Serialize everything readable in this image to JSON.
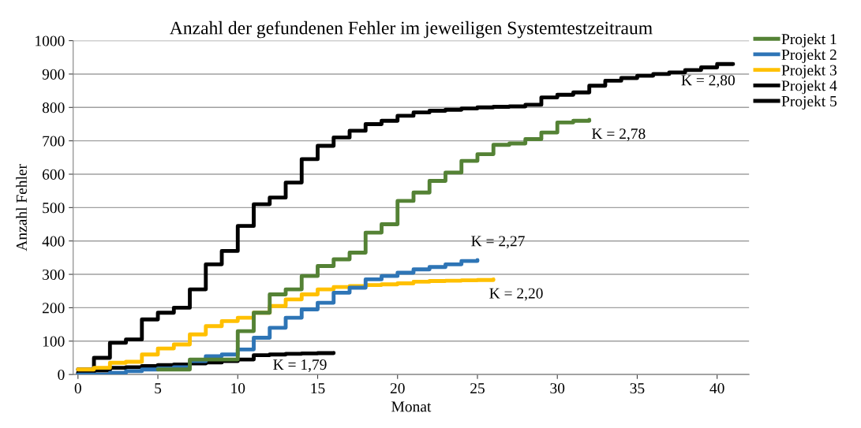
{
  "chart_data": {
    "type": "step",
    "title": "Anzahl der gefundenen Fehler im jeweiligen Systemtestzeitraum",
    "xlabel": "Monat",
    "ylabel": "Anzahl Fehler",
    "x": [
      0,
      1,
      2,
      3,
      4,
      5,
      6,
      7,
      8,
      9,
      10,
      11,
      12,
      13,
      14,
      15,
      16,
      17,
      18,
      19,
      20,
      21,
      22,
      23,
      24,
      25,
      26,
      27,
      28,
      29,
      30,
      31,
      32,
      33,
      34,
      35,
      36,
      37,
      38,
      39,
      40,
      41
    ],
    "series": [
      {
        "name": "Projekt 1",
        "color": "#548235",
        "line_style": "solid",
        "x": [
          5,
          6,
          7,
          8,
          9,
          10,
          11,
          12,
          13,
          14,
          15,
          16,
          17,
          18,
          19,
          20,
          21,
          22,
          23,
          24,
          25,
          26,
          27,
          28,
          29,
          30,
          31,
          32
        ],
        "values": [
          15,
          15,
          45,
          45,
          45,
          130,
          185,
          240,
          255,
          295,
          325,
          345,
          365,
          425,
          450,
          520,
          545,
          580,
          605,
          640,
          660,
          688,
          692,
          705,
          725,
          755,
          760,
          763
        ]
      },
      {
        "name": "Projekt 2",
        "color": "#2e75b6",
        "line_style": "solid",
        "x": [
          0,
          1,
          2,
          3,
          4,
          5,
          6,
          7,
          8,
          9,
          10,
          11,
          12,
          13,
          14,
          15,
          16,
          17,
          18,
          19,
          20,
          21,
          22,
          23,
          24,
          25
        ],
        "values": [
          0,
          0,
          5,
          10,
          15,
          18,
          22,
          40,
          55,
          60,
          75,
          110,
          140,
          170,
          195,
          215,
          245,
          260,
          285,
          295,
          305,
          315,
          322,
          330,
          340,
          343
        ]
      },
      {
        "name": "Projekt 3",
        "color": "#ffc000",
        "line_style": "solid",
        "x": [
          0,
          1,
          2,
          3,
          4,
          5,
          6,
          7,
          8,
          9,
          10,
          11,
          12,
          13,
          14,
          15,
          16,
          17,
          18,
          19,
          20,
          21,
          22,
          23,
          24,
          25,
          26
        ],
        "values": [
          15,
          20,
          35,
          38,
          60,
          78,
          90,
          120,
          145,
          160,
          170,
          185,
          205,
          225,
          240,
          255,
          262,
          265,
          268,
          270,
          273,
          278,
          280,
          281,
          282,
          283,
          285
        ]
      },
      {
        "name": "Projekt 4",
        "color": "#000000",
        "line_style": "solid",
        "x": [
          0,
          1,
          2,
          3,
          4,
          5,
          6,
          7,
          8,
          9,
          10,
          11,
          12,
          13,
          14,
          15,
          16
        ],
        "values": [
          5,
          12,
          20,
          22,
          25,
          28,
          30,
          33,
          36,
          40,
          45,
          58,
          60,
          62,
          63,
          64,
          65
        ]
      },
      {
        "name": "Projekt 5",
        "color": "#000000",
        "line_style": "solid",
        "values": [
          15,
          50,
          95,
          105,
          165,
          185,
          200,
          255,
          330,
          370,
          445,
          510,
          530,
          575,
          645,
          685,
          710,
          730,
          750,
          760,
          775,
          785,
          790,
          793,
          797,
          800,
          802,
          803,
          808,
          830,
          838,
          845,
          865,
          880,
          888,
          895,
          900,
          905,
          912,
          920,
          930,
          930
        ]
      }
    ],
    "annotations": [
      {
        "text": "K = 2,78",
        "x": 32,
        "y": 763
      },
      {
        "text": "K = 2,27",
        "x": 25,
        "y": 343
      },
      {
        "text": "K = 2,20",
        "x": 26,
        "y": 285
      },
      {
        "text": "K = 1,79",
        "x": 16,
        "y": 65
      },
      {
        "text": "K = 2,80",
        "x": 41,
        "y": 930
      }
    ],
    "xlim": [
      -0.3,
      42
    ],
    "ylim": [
      0,
      1000
    ],
    "xticks": [
      0,
      5,
      10,
      15,
      20,
      25,
      30,
      35,
      40
    ],
    "yticks": [
      0,
      100,
      200,
      300,
      400,
      500,
      600,
      700,
      800,
      900,
      1000
    ],
    "grid": "y",
    "legend": "top right",
    "marker": "none"
  }
}
